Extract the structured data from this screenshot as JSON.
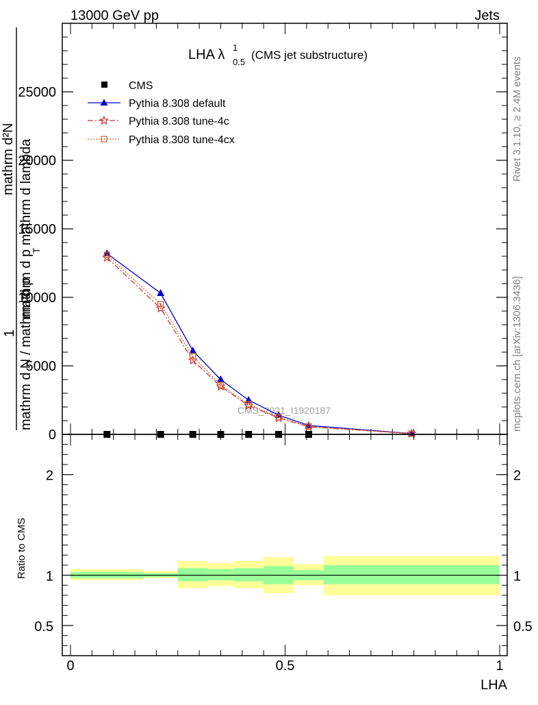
{
  "header": {
    "energy_label": "13000 GeV pp",
    "category_label": "Jets"
  },
  "side_text": {
    "rivet": "Rivet 3.1.10, ≥ 2.4M events",
    "mcplots": "mcplots.cern.ch [arXiv:1306.3436]"
  },
  "chart_data": [
    {
      "type": "line",
      "title_main": "LHA λ",
      "title_sup": "1",
      "title_sub": "0.5",
      "title_suffix": "(CMS jet substructure)",
      "ylabel_parts": {
        "one": "1",
        "numerator_text": "mathrm d²N",
        "denominator_text": "mathrm d N / mathrm d p",
        "denominator_sub": "T",
        "denominator_tail": " mathrm d lambda",
        "top_num": "mathrm d²N",
        "top_den": "mathrm d p",
        "top_den_sub": "T",
        "top_den_tail": " mathrm d lambda"
      },
      "watermark": "CMS_2021_I1920187",
      "xlim": [
        0,
        1
      ],
      "ylim": [
        0,
        30000
      ],
      "y_ticks": [
        0,
        5000,
        10000,
        15000,
        20000,
        25000
      ],
      "y_tick_labels": [
        "0",
        "5000",
        "10000",
        "15000",
        "20000",
        "25000"
      ],
      "series": [
        {
          "name": "CMS",
          "marker": "square",
          "color": "#000000",
          "x": [
            0.085,
            0.21,
            0.285,
            0.35,
            0.415,
            0.485,
            0.555
          ],
          "y": [
            0,
            0,
            0,
            0,
            0,
            0,
            0
          ]
        },
        {
          "name": "Pythia 8.308 default",
          "marker": "triangle",
          "color": "#0000cc",
          "dash": "",
          "x": [
            0.085,
            0.21,
            0.285,
            0.35,
            0.415,
            0.485,
            0.555,
            0.795
          ],
          "y": [
            13200,
            10300,
            6100,
            4000,
            2500,
            1400,
            650,
            60
          ]
        },
        {
          "name": "Pythia 8.308 tune-4c",
          "marker": "star",
          "color": "#cc3333",
          "dash": "8,3,2,3",
          "x": [
            0.085,
            0.21,
            0.285,
            0.35,
            0.415,
            0.485,
            0.555,
            0.795
          ],
          "y": [
            12900,
            9200,
            5400,
            3500,
            2100,
            1200,
            550,
            50
          ]
        },
        {
          "name": "Pythia 8.308 tune-4cx",
          "marker": "open-square",
          "color": "#cc6633",
          "dash": "2,2",
          "x": [
            0.085,
            0.21,
            0.285,
            0.35,
            0.415,
            0.485,
            0.555,
            0.795
          ],
          "y": [
            13100,
            9500,
            5700,
            3600,
            2200,
            1250,
            580,
            55
          ]
        }
      ]
    },
    {
      "type": "area",
      "ylabel": "Ratio to CMS",
      "xlabel": "LHA",
      "xlim": [
        0,
        1
      ],
      "ylim": [
        0.2,
        2.4
      ],
      "x_ticks": [
        0,
        0.5,
        1
      ],
      "x_tick_labels": [
        "0",
        "0.5",
        "1"
      ],
      "y_ticks": [
        0.5,
        1,
        2
      ],
      "y_tick_labels": [
        "0.5",
        "1",
        "2"
      ],
      "ratio_line": 1,
      "bins": [
        {
          "x0": 0.0,
          "x1": 0.17,
          "inner": [
            0.97,
            1.03
          ],
          "outer": [
            0.95,
            1.06
          ]
        },
        {
          "x0": 0.17,
          "x1": 0.25,
          "inner": [
            0.98,
            1.02
          ],
          "outer": [
            0.97,
            1.04
          ]
        },
        {
          "x0": 0.25,
          "x1": 0.32,
          "inner": [
            0.94,
            1.07
          ],
          "outer": [
            0.87,
            1.14
          ]
        },
        {
          "x0": 0.32,
          "x1": 0.38,
          "inner": [
            0.95,
            1.06
          ],
          "outer": [
            0.89,
            1.12
          ]
        },
        {
          "x0": 0.38,
          "x1": 0.45,
          "inner": [
            0.94,
            1.07
          ],
          "outer": [
            0.87,
            1.14
          ]
        },
        {
          "x0": 0.45,
          "x1": 0.52,
          "inner": [
            0.91,
            1.09
          ],
          "outer": [
            0.82,
            1.18
          ]
        },
        {
          "x0": 0.52,
          "x1": 0.59,
          "inner": [
            0.95,
            1.05
          ],
          "outer": [
            0.9,
            1.11
          ]
        },
        {
          "x0": 0.59,
          "x1": 1.0,
          "inner": [
            0.91,
            1.1
          ],
          "outer": [
            0.8,
            1.19
          ]
        }
      ],
      "band_colors": {
        "inner": "#99ff99",
        "outer": "#ffff99"
      }
    }
  ]
}
